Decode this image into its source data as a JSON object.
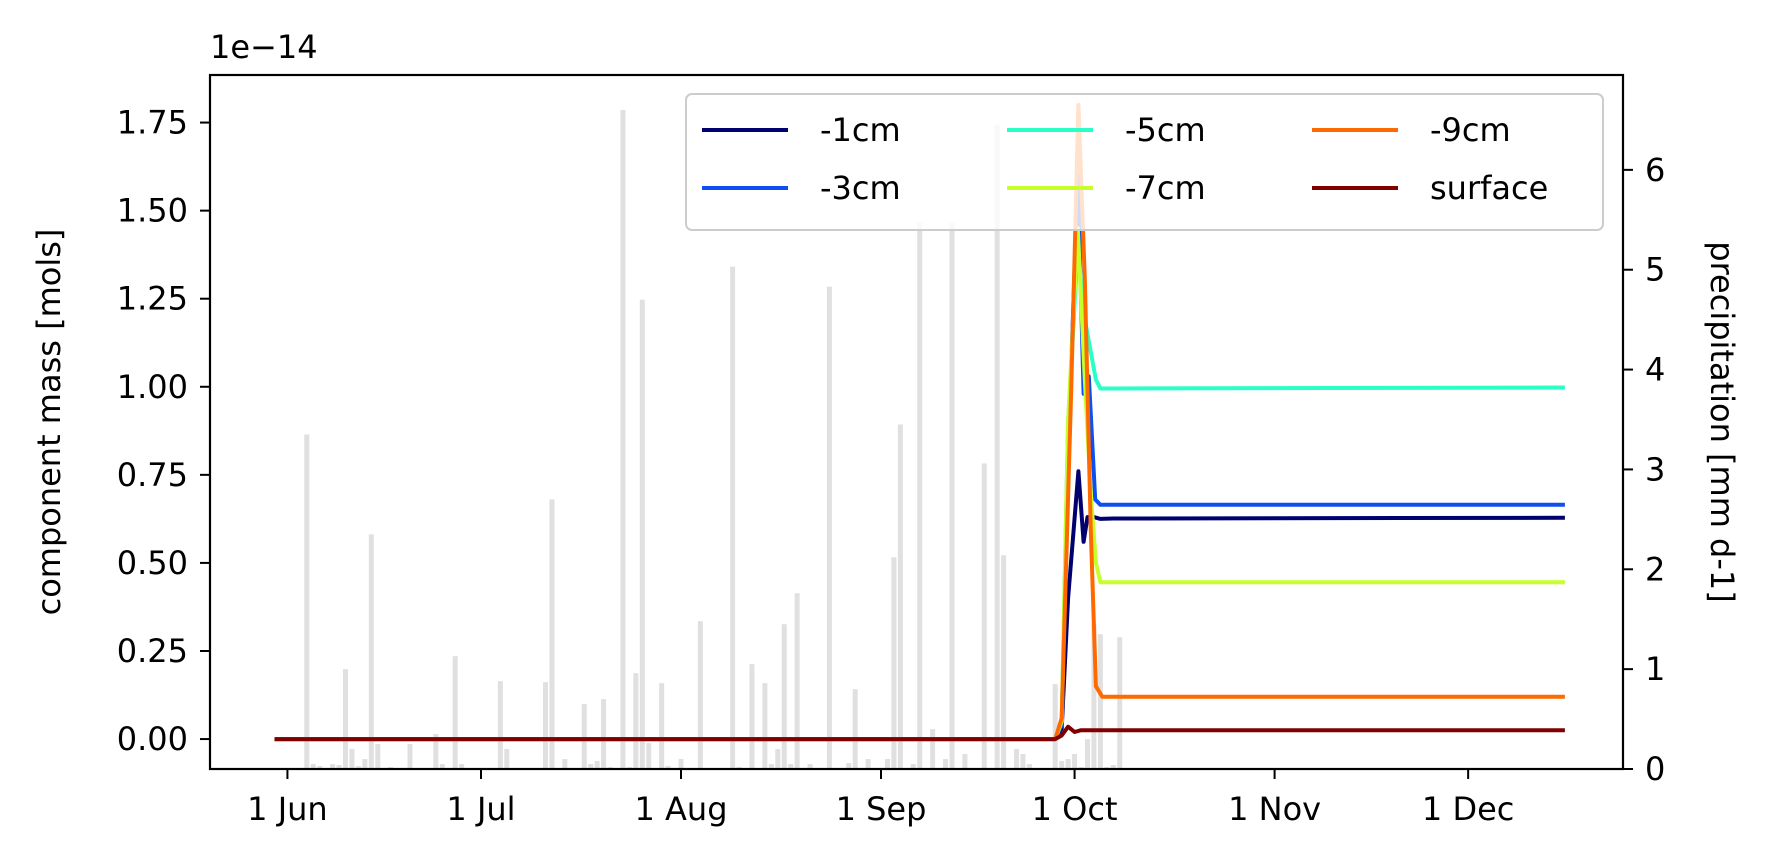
{
  "chart_data": {
    "type": "line",
    "title": "",
    "offset_label": "1e−14",
    "xlabel": "",
    "ylabel": "component mass [mols]",
    "y2label": "precipitation [mm d-1]",
    "xlim_day": [
      0,
      219
    ],
    "ylim": [
      -0.085,
      1.885
    ],
    "y2lim": [
      0,
      6.95
    ],
    "x_ticks": [
      {
        "label": "1 Jun",
        "day": 12
      },
      {
        "label": "1 Jul",
        "day": 42
      },
      {
        "label": "1 Aug",
        "day": 73
      },
      {
        "label": "1 Sep",
        "day": 104
      },
      {
        "label": "1 Oct",
        "day": 134
      },
      {
        "label": "1 Nov",
        "day": 165
      },
      {
        "label": "1 Dec",
        "day": 195
      }
    ],
    "y_ticks": [
      "0.00",
      "0.25",
      "0.50",
      "0.75",
      "1.00",
      "1.25",
      "1.50",
      "1.75"
    ],
    "y2_ticks": [
      "0",
      "1",
      "2",
      "3",
      "4",
      "5",
      "6"
    ],
    "legend": {
      "placement": "top-right",
      "columns": 3
    },
    "series": [
      {
        "name": "-1cm",
        "color": "#00006f",
        "points": [
          [
            10,
            0
          ],
          [
            131,
            0
          ],
          [
            132,
            0.03
          ],
          [
            133,
            0.4
          ],
          [
            134.6,
            0.76
          ],
          [
            135.4,
            0.56
          ],
          [
            136,
            0.63
          ],
          [
            137,
            0.63
          ],
          [
            138,
            0.625
          ],
          [
            140,
            0.626
          ],
          [
            210,
            0.628
          ]
        ]
      },
      {
        "name": "-3cm",
        "color": "#0d4fef",
        "points": [
          [
            10,
            0
          ],
          [
            131,
            0
          ],
          [
            132,
            0.04
          ],
          [
            133,
            0.8
          ],
          [
            134.5,
            1.6
          ],
          [
            135.4,
            0.98
          ],
          [
            136.2,
            1.03
          ],
          [
            137.2,
            0.68
          ],
          [
            138,
            0.665
          ],
          [
            140,
            0.665
          ],
          [
            210,
            0.665
          ]
        ]
      },
      {
        "name": "-5cm",
        "color": "#29ffc6",
        "points": [
          [
            10,
            0
          ],
          [
            131,
            0
          ],
          [
            132,
            0.05
          ],
          [
            133,
            0.9
          ],
          [
            134.5,
            1.4
          ],
          [
            135.5,
            1.2
          ],
          [
            136.5,
            1.1
          ],
          [
            137.3,
            1.02
          ],
          [
            138,
            0.995
          ],
          [
            140,
            0.995
          ],
          [
            210,
            0.998
          ]
        ]
      },
      {
        "name": "-7cm",
        "color": "#c6ff29",
        "points": [
          [
            10,
            0
          ],
          [
            131,
            0
          ],
          [
            132,
            0.05
          ],
          [
            133,
            0.9
          ],
          [
            134.5,
            1.45
          ],
          [
            135.5,
            1.05
          ],
          [
            136.5,
            0.7
          ],
          [
            137.3,
            0.5
          ],
          [
            138,
            0.445
          ],
          [
            140,
            0.445
          ],
          [
            210,
            0.445
          ]
        ]
      },
      {
        "name": "-9cm",
        "color": "#ff6a00",
        "points": [
          [
            10,
            0
          ],
          [
            131,
            0
          ],
          [
            132,
            0.06
          ],
          [
            133.5,
            1.0
          ],
          [
            134.6,
            1.8
          ],
          [
            135.6,
            1.3
          ],
          [
            136.5,
            0.6
          ],
          [
            137.3,
            0.15
          ],
          [
            138.3,
            0.12
          ],
          [
            140,
            0.12
          ],
          [
            210,
            0.12
          ]
        ]
      },
      {
        "name": "surface",
        "color": "#7f0000",
        "points": [
          [
            10,
            0
          ],
          [
            131,
            0
          ],
          [
            132,
            0.01
          ],
          [
            133,
            0.035
          ],
          [
            134,
            0.02
          ],
          [
            135,
            0.025
          ],
          [
            136,
            0.025
          ],
          [
            210,
            0.025
          ]
        ]
      }
    ],
    "precip_bars": [
      [
        15,
        3.35
      ],
      [
        16,
        0.05
      ],
      [
        17,
        0.03
      ],
      [
        18,
        0.01
      ],
      [
        19,
        0.05
      ],
      [
        20,
        0.04
      ],
      [
        21,
        1.0
      ],
      [
        22,
        0.2
      ],
      [
        23,
        0.03
      ],
      [
        24,
        0.1
      ],
      [
        25,
        2.35
      ],
      [
        26,
        0.25
      ],
      [
        28,
        0.02
      ],
      [
        31,
        0.25
      ],
      [
        35,
        0.35
      ],
      [
        36,
        0.05
      ],
      [
        38,
        1.13
      ],
      [
        39,
        0.05
      ],
      [
        42,
        0.01
      ],
      [
        45,
        0.88
      ],
      [
        46,
        0.2
      ],
      [
        52,
        0.87
      ],
      [
        53,
        2.7
      ],
      [
        55,
        0.1
      ],
      [
        58,
        0.65
      ],
      [
        59,
        0.05
      ],
      [
        60,
        0.08
      ],
      [
        61,
        0.7
      ],
      [
        62,
        0.02
      ],
      [
        64,
        6.6
      ],
      [
        65,
        0.02
      ],
      [
        66,
        0.96
      ],
      [
        67,
        4.7
      ],
      [
        68,
        0.26
      ],
      [
        70,
        0.86
      ],
      [
        71,
        0.03
      ],
      [
        73,
        0.1
      ],
      [
        76,
        1.48
      ],
      [
        81,
        5.03
      ],
      [
        82,
        0.02
      ],
      [
        84,
        1.05
      ],
      [
        86,
        0.86
      ],
      [
        87,
        0.05
      ],
      [
        88,
        0.2
      ],
      [
        89,
        1.45
      ],
      [
        90,
        0.05
      ],
      [
        91,
        1.76
      ],
      [
        93,
        0.05
      ],
      [
        96,
        4.83
      ],
      [
        97,
        0.01
      ],
      [
        99,
        0.06
      ],
      [
        100,
        0.8
      ],
      [
        102,
        0.1
      ],
      [
        105,
        0.1
      ],
      [
        106,
        2.12
      ],
      [
        107,
        3.45
      ],
      [
        109,
        0.05
      ],
      [
        110,
        5.47
      ],
      [
        112,
        0.4
      ],
      [
        114,
        0.1
      ],
      [
        115,
        5.47
      ],
      [
        117,
        0.15
      ],
      [
        120,
        3.06
      ],
      [
        122,
        6.45
      ],
      [
        123,
        2.14
      ],
      [
        125,
        0.2
      ],
      [
        126,
        0.15
      ],
      [
        127,
        0.05
      ],
      [
        131,
        0.85
      ],
      [
        132,
        0.08
      ],
      [
        133,
        0.1
      ],
      [
        134,
        0.15
      ],
      [
        135,
        0.02
      ],
      [
        136,
        0.3
      ],
      [
        137,
        1.45
      ],
      [
        138,
        1.35
      ],
      [
        139,
        0.02
      ],
      [
        140,
        0.04
      ],
      [
        141,
        1.32
      ]
    ]
  }
}
